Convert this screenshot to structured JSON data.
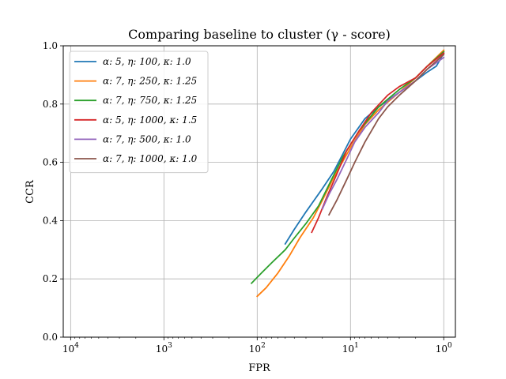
{
  "chart_data": {
    "type": "line",
    "title": "Comparing baseline to cluster (γ - score)",
    "xlabel": "FPR",
    "ylabel": "CCR",
    "xscale": "log-reversed",
    "xlim": [
      12000,
      0.75
    ],
    "ylim": [
      0.0,
      1.0
    ],
    "x_ticks": [
      {
        "value": 10000,
        "base": "10",
        "exp": "4"
      },
      {
        "value": 1000,
        "base": "10",
        "exp": "3"
      },
      {
        "value": 100,
        "base": "10",
        "exp": "2"
      },
      {
        "value": 10,
        "base": "10",
        "exp": "1"
      },
      {
        "value": 1,
        "base": "10",
        "exp": "0"
      }
    ],
    "y_ticks": [
      "0.0",
      "0.2",
      "0.4",
      "0.6",
      "0.8",
      "1.0"
    ],
    "grid": true,
    "legend_position": "top-left",
    "series": [
      {
        "name": "α: 5, η: 100, κ: 1.0",
        "color": "#1f77b4",
        "points": [
          [
            50,
            0.32
          ],
          [
            40,
            0.37
          ],
          [
            30,
            0.43
          ],
          [
            20,
            0.51
          ],
          [
            15,
            0.57
          ],
          [
            12,
            0.63
          ],
          [
            10,
            0.68
          ],
          [
            7,
            0.75
          ],
          [
            5,
            0.79
          ],
          [
            3,
            0.84
          ],
          [
            2,
            0.88
          ],
          [
            1.5,
            0.91
          ],
          [
            1.2,
            0.93
          ],
          [
            1,
            0.975
          ]
        ]
      },
      {
        "name": "α: 7, η: 250, κ: 1.25",
        "color": "#ff7f0e",
        "points": [
          [
            100,
            0.14
          ],
          [
            80,
            0.17
          ],
          [
            60,
            0.22
          ],
          [
            45,
            0.28
          ],
          [
            35,
            0.34
          ],
          [
            25,
            0.41
          ],
          [
            20,
            0.47
          ],
          [
            15,
            0.55
          ],
          [
            10,
            0.65
          ],
          [
            7,
            0.73
          ],
          [
            5,
            0.78
          ],
          [
            3,
            0.84
          ],
          [
            2,
            0.89
          ],
          [
            1.5,
            0.93
          ],
          [
            1,
            0.985
          ]
        ]
      },
      {
        "name": "α: 7, η: 750, κ: 1.25",
        "color": "#2ca02c",
        "points": [
          [
            115,
            0.185
          ],
          [
            90,
            0.22
          ],
          [
            70,
            0.255
          ],
          [
            50,
            0.3
          ],
          [
            40,
            0.34
          ],
          [
            30,
            0.39
          ],
          [
            22,
            0.45
          ],
          [
            16,
            0.54
          ],
          [
            12,
            0.62
          ],
          [
            8,
            0.71
          ],
          [
            5,
            0.79
          ],
          [
            3,
            0.85
          ],
          [
            2,
            0.89
          ],
          [
            1.5,
            0.93
          ],
          [
            1,
            0.98
          ]
        ]
      },
      {
        "name": "α: 5, η: 1000, κ: 1.5",
        "color": "#d62728",
        "points": [
          [
            26,
            0.36
          ],
          [
            22,
            0.41
          ],
          [
            18,
            0.48
          ],
          [
            14,
            0.56
          ],
          [
            11,
            0.64
          ],
          [
            8,
            0.71
          ],
          [
            6,
            0.77
          ],
          [
            4,
            0.83
          ],
          [
            3,
            0.86
          ],
          [
            2,
            0.89
          ],
          [
            1.5,
            0.93
          ],
          [
            1,
            0.975
          ]
        ]
      },
      {
        "name": "α: 7, η: 500, κ: 1.0",
        "color": "#9467bd",
        "points": [
          [
            20,
            0.44
          ],
          [
            17,
            0.49
          ],
          [
            14,
            0.54
          ],
          [
            11,
            0.61
          ],
          [
            9,
            0.67
          ],
          [
            7,
            0.72
          ],
          [
            5,
            0.77
          ],
          [
            4,
            0.81
          ],
          [
            3,
            0.84
          ],
          [
            2,
            0.88
          ],
          [
            1.5,
            0.92
          ],
          [
            1,
            0.96
          ]
        ]
      },
      {
        "name": "α: 7, η: 1000, κ: 1.0",
        "color": "#8c564b",
        "points": [
          [
            17,
            0.42
          ],
          [
            14,
            0.47
          ],
          [
            11,
            0.54
          ],
          [
            9,
            0.6
          ],
          [
            7,
            0.67
          ],
          [
            5,
            0.75
          ],
          [
            4,
            0.79
          ],
          [
            3,
            0.83
          ],
          [
            2,
            0.88
          ],
          [
            1.5,
            0.92
          ],
          [
            1,
            0.97
          ]
        ]
      }
    ]
  }
}
